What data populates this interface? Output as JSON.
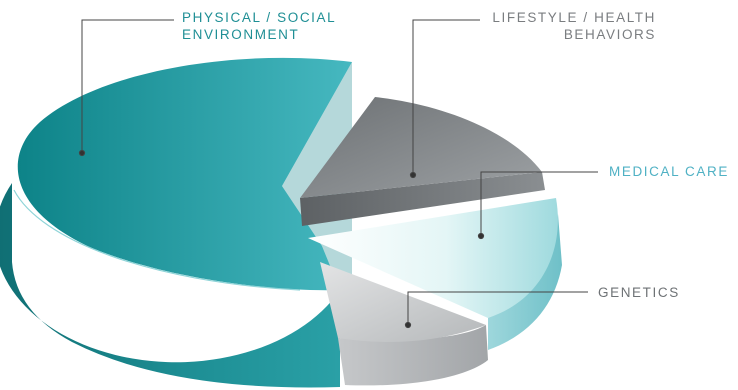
{
  "chart_data": {
    "type": "pie",
    "title": "",
    "categories": [
      "Physical / Social Environment",
      "Lifestyle / Health Behaviors",
      "Medical Care",
      "Genetics"
    ],
    "slices": [
      {
        "key": "physical",
        "name": "Physical / Social Environment",
        "lines": [
          "PHYSICAL / SOCIAL",
          "ENVIRONMENT"
        ],
        "value": 50,
        "color": "#1f9aa0"
      },
      {
        "key": "lifestyle",
        "name": "Lifestyle / Health Behaviors",
        "lines": [
          "LIFESTYLE / HEALTH",
          "BEHAVIORS"
        ],
        "value": 20,
        "color": "#8d9194"
      },
      {
        "key": "medical",
        "name": "Medical Care",
        "lines": [
          "MEDICAL CARE"
        ],
        "value": 20,
        "color": "#bfe9ea"
      },
      {
        "key": "genetics",
        "name": "Genetics",
        "lines": [
          "GENETICS"
        ],
        "value": 10,
        "color": "#c9cbcd"
      }
    ],
    "style": "3d-exploded",
    "legend": "none"
  }
}
